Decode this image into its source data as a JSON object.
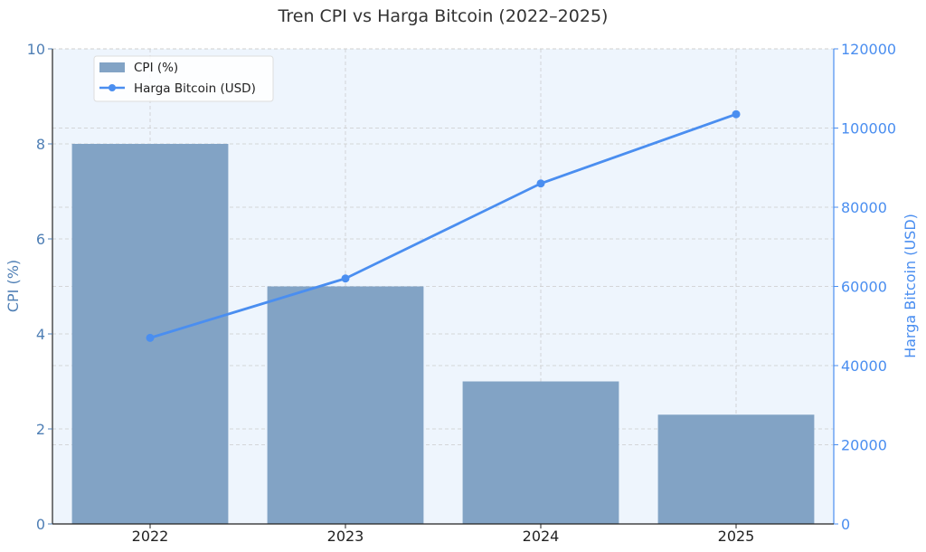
{
  "chart_data": {
    "type": "bar+line",
    "title": "Tren CPI vs Harga Bitcoin (2022–2025)",
    "categories": [
      "2022",
      "2023",
      "2024",
      "2025"
    ],
    "series": [
      {
        "name": "CPI (%)",
        "type": "bar",
        "axis": "left",
        "values": [
          8.0,
          5.0,
          3.0,
          2.3
        ]
      },
      {
        "name": "Harga Bitcoin (USD)",
        "type": "line",
        "axis": "right",
        "values": [
          47000,
          62000,
          86000,
          103500
        ]
      }
    ],
    "ylabel_left": "CPI (%)",
    "ylabel_right": "Harga Bitcoin (USD)",
    "ylim_left": [
      0,
      10
    ],
    "ylim_right": [
      0,
      120000
    ],
    "yticks_left": [
      "0",
      "2",
      "4",
      "6",
      "8",
      "10"
    ],
    "yticks_right": [
      "0",
      "20000",
      "40000",
      "60000",
      "80000",
      "100000",
      "120000"
    ],
    "grid": true,
    "legend_position": "top-left",
    "colors": {
      "bar": "#82a3c5",
      "line": "#4a8ef0",
      "left_axis": "#4f7fb5",
      "right_axis": "#4a8ef0",
      "plot_background": "#eef5fd",
      "grid": "#cccccc"
    }
  }
}
